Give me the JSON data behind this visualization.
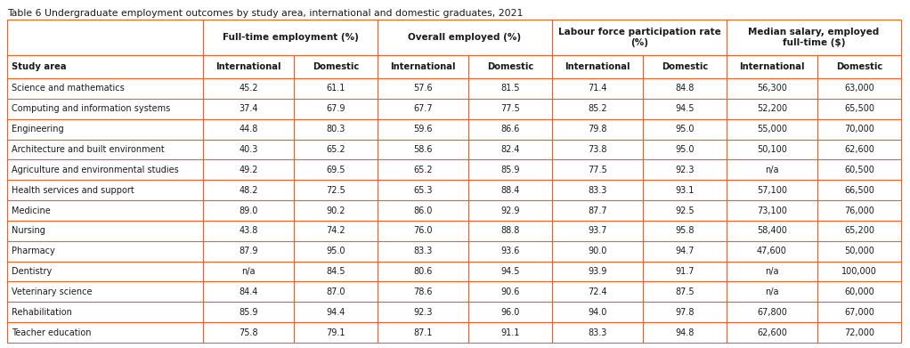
{
  "title": "Table 6 Undergraduate employment outcomes by study area, international and domestic graduates, 2021",
  "study_areas": [
    "Science and mathematics",
    "Computing and information systems",
    "Engineering",
    "Architecture and built environment",
    "Agriculture and environmental studies",
    "Health services and support",
    "Medicine",
    "Nursing",
    "Pharmacy",
    "Dentistry",
    "Veterinary science",
    "Rehabilitation",
    "Teacher education"
  ],
  "group_headers": [
    "Full-time employment (%)",
    "Overall employed (%)",
    "Labour force participation rate\n(%)",
    "Median salary, employed\nfull-time ($)"
  ],
  "sub_headers": [
    "International",
    "Domestic",
    "International",
    "Domestic",
    "International",
    "Domestic",
    "International",
    "Domestic"
  ],
  "data": [
    [
      "45.2",
      "61.1",
      "57.6",
      "81.5",
      "71.4",
      "84.8",
      "56,300",
      "63,000"
    ],
    [
      "37.4",
      "67.9",
      "67.7",
      "77.5",
      "85.2",
      "94.5",
      "52,200",
      "65,500"
    ],
    [
      "44.8",
      "80.3",
      "59.6",
      "86.6",
      "79.8",
      "95.0",
      "55,000",
      "70,000"
    ],
    [
      "40.3",
      "65.2",
      "58.6",
      "82.4",
      "73.8",
      "95.0",
      "50,100",
      "62,600"
    ],
    [
      "49.2",
      "69.5",
      "65.2",
      "85.9",
      "77.5",
      "92.3",
      "n/a",
      "60,500"
    ],
    [
      "48.2",
      "72.5",
      "65.3",
      "88.4",
      "83.3",
      "93.1",
      "57,100",
      "66,500"
    ],
    [
      "89.0",
      "90.2",
      "86.0",
      "92.9",
      "87.7",
      "92.5",
      "73,100",
      "76,000"
    ],
    [
      "43.8",
      "74.2",
      "76.0",
      "88.8",
      "93.7",
      "95.8",
      "58,400",
      "65,200"
    ],
    [
      "87.9",
      "95.0",
      "83.3",
      "93.6",
      "90.0",
      "94.7",
      "47,600",
      "50,000"
    ],
    [
      "n/a",
      "84.5",
      "80.6",
      "94.5",
      "93.9",
      "91.7",
      "n/a",
      "100,000"
    ],
    [
      "84.4",
      "87.0",
      "78.6",
      "90.6",
      "72.4",
      "87.5",
      "n/a",
      "60,000"
    ],
    [
      "85.9",
      "94.4",
      "92.3",
      "96.0",
      "94.0",
      "97.8",
      "67,800",
      "67,000"
    ],
    [
      "75.8",
      "79.1",
      "87.1",
      "91.1",
      "83.3",
      "94.8",
      "62,600",
      "72,000"
    ]
  ],
  "background_color": "#ffffff",
  "border_color": "#E8622A",
  "text_color": "#1a1a1a",
  "title_fontsize": 7.8,
  "header_fontsize": 7.5,
  "subheader_fontsize": 7.2,
  "data_fontsize": 7.0,
  "study_area_fontsize": 7.0
}
